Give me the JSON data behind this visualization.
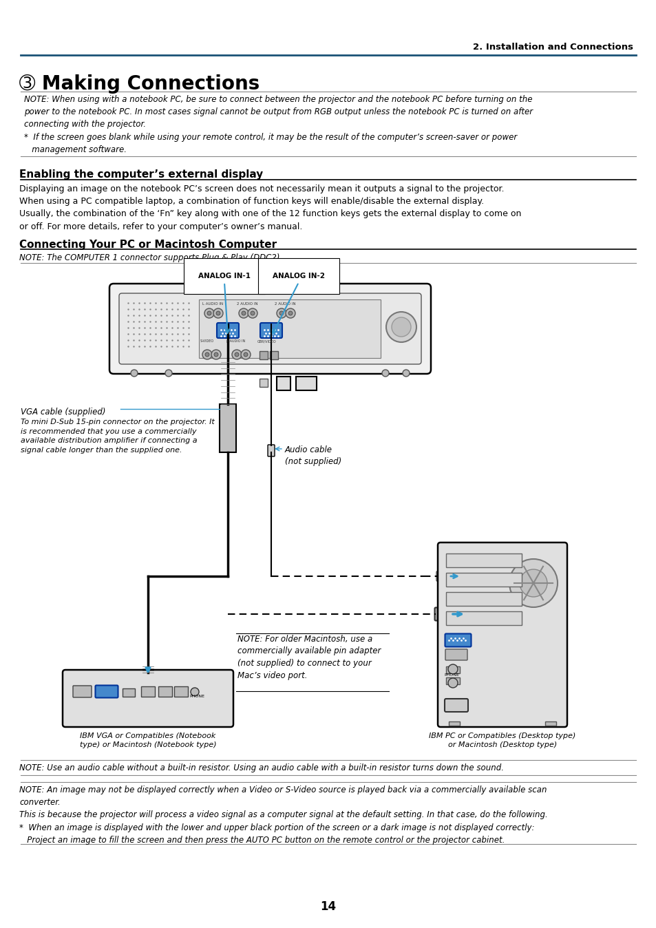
{
  "page_number": "14",
  "header_right": "2. Installation and Connections",
  "title": "➂ Making Connections",
  "note_text": "NOTE: When using with a notebook PC, be sure to connect between the projector and the notebook PC before turning on the\npower to the notebook PC. In most cases signal cannot be output from RGB output unless the notebook PC is turned on after\nconnecting with the projector.\n*  If the screen goes blank while using your remote control, it may be the result of the computer’s screen-saver or power\n   management software.",
  "section1_title": "Enabling the computer’s external display",
  "section1_body": "Displaying an image on the notebook PC’s screen does not necessarily mean it outputs a signal to the projector.\nWhen using a PC compatible laptop, a combination of function keys will enable/disable the external display.\nUsually, the combination of the ‘Fn” key along with one of the 12 function keys gets the external display to come on\nor off. For more details, refer to your computer’s owner’s manual.",
  "section2_title": "Connecting Your PC or Macintosh Computer",
  "section2_note": "NOTE: The COMPUTER 1 connector supports Plug & Play (DDC2).",
  "vga_label_line1": "VGA cable (supplied)",
  "vga_label_rest": "To mini D-Sub 15-pin connector on the projector. It\nis recommended that you use a commercially\navailable distribution amplifier if connecting a\nsignal cable longer than the supplied one.",
  "audio_label": "Audio cable\n(not supplied)",
  "mac_note": "NOTE: For older Macintosh, use a\ncommercially available pin adapter\n(not supplied) to connect to your\nMac’s video port.",
  "ibm_notebook_label": "IBM VGA or Compatibles (Notebook\ntype) or Macintosh (Notebook type)",
  "ibm_desktop_label": "IBM PC or Compatibles (Desktop type)\nor Macintosh (Desktop type)",
  "bottom_note1": "NOTE: Use an audio cable without a built-in resistor. Using an audio cable with a built-in resistor turns down the sound.",
  "bottom_note2": "NOTE: An image may not be displayed correctly when a Video or S-Video source is played back via a commercially available scan\nconverter.\nThis is because the projector will process a video signal as a computer signal at the default setting. In that case, do the following.\n*  When an image is displayed with the lower and upper black portion of the screen or a dark image is not displayed correctly:\n   Project an image to fill the screen and then press the AUTO PC button on the remote control or the projector cabinet.",
  "analog_in1": "ANALOG IN-1",
  "analog_in2": "ANALOG IN-2",
  "blue": "#3399cc",
  "dark_blue": "#1a5276"
}
